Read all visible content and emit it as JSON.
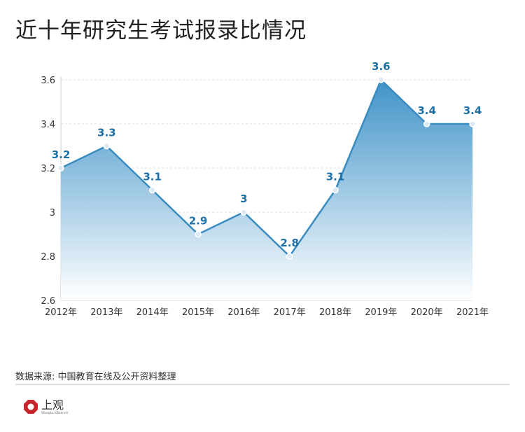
{
  "chart_data": {
    "type": "area",
    "title": "近十年研究生考试报录比情况",
    "categories": [
      "2012年",
      "2013年",
      "2014年",
      "2015年",
      "2016年",
      "2017年",
      "2018年",
      "2019年",
      "2020年",
      "2021年"
    ],
    "values": [
      3.2,
      3.3,
      3.1,
      2.9,
      3,
      2.8,
      3.1,
      3.6,
      3.4,
      3.4
    ],
    "labels": [
      "3.2",
      "3.3",
      "3.1",
      "2.9",
      "3",
      "2.8",
      "3.1",
      "3.6",
      "3.4",
      "3.4"
    ],
    "yticks": [
      2.6,
      2.8,
      3,
      3.2,
      3.4,
      3.6
    ],
    "ytick_labels": [
      "2.6",
      "2.8",
      "3",
      "3.2",
      "3.4",
      "3.6"
    ],
    "ylim": [
      2.6,
      3.6
    ],
    "grid": true,
    "xlabel": "",
    "ylabel": "",
    "colors": {
      "line": "#3a8cc0",
      "label": "#1d6fa8",
      "fill_top": "#4f9fd0"
    }
  },
  "source": "数据来源: 中国教育在线及公开资料整理",
  "logo": {
    "text": "上观",
    "sub": "Shanghai Observer"
  }
}
